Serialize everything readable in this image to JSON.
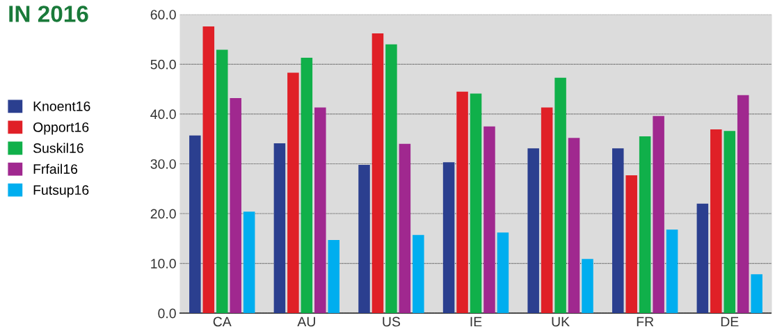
{
  "chart_data": {
    "type": "bar",
    "title": "IN 2016",
    "categories": [
      "CA",
      "AU",
      "US",
      "IE",
      "UK",
      "FR",
      "DE"
    ],
    "series": [
      {
        "name": "Knoent16",
        "color": "#2b3f8f",
        "values": [
          35.7,
          34.1,
          29.8,
          30.3,
          33.1,
          33.1,
          22.0
        ]
      },
      {
        "name": "Opport16",
        "color": "#e02027",
        "values": [
          57.6,
          48.3,
          56.2,
          44.5,
          41.3,
          27.7,
          36.9
        ]
      },
      {
        "name": "Suskil16",
        "color": "#10b04a",
        "values": [
          52.9,
          51.3,
          54.0,
          44.1,
          47.3,
          35.5,
          36.6
        ]
      },
      {
        "name": "Frfail16",
        "color": "#a0288f",
        "values": [
          43.2,
          41.3,
          34.0,
          37.5,
          35.2,
          39.6,
          43.8
        ]
      },
      {
        "name": "Futsup16",
        "color": "#00aeef",
        "values": [
          20.4,
          14.7,
          15.7,
          16.2,
          10.9,
          16.8,
          7.8
        ]
      }
    ],
    "ylim": [
      0,
      60
    ],
    "yticks": [
      {
        "value": 0,
        "label": "0.0"
      },
      {
        "value": 10,
        "label": "10.0"
      },
      {
        "value": 20,
        "label": "20.0"
      },
      {
        "value": 30,
        "label": "30.0"
      },
      {
        "value": 40,
        "label": "40.0"
      },
      {
        "value": 50,
        "label": "50.0"
      },
      {
        "value": 60,
        "label": "60.0"
      }
    ],
    "grid": "y",
    "legend": "left"
  }
}
